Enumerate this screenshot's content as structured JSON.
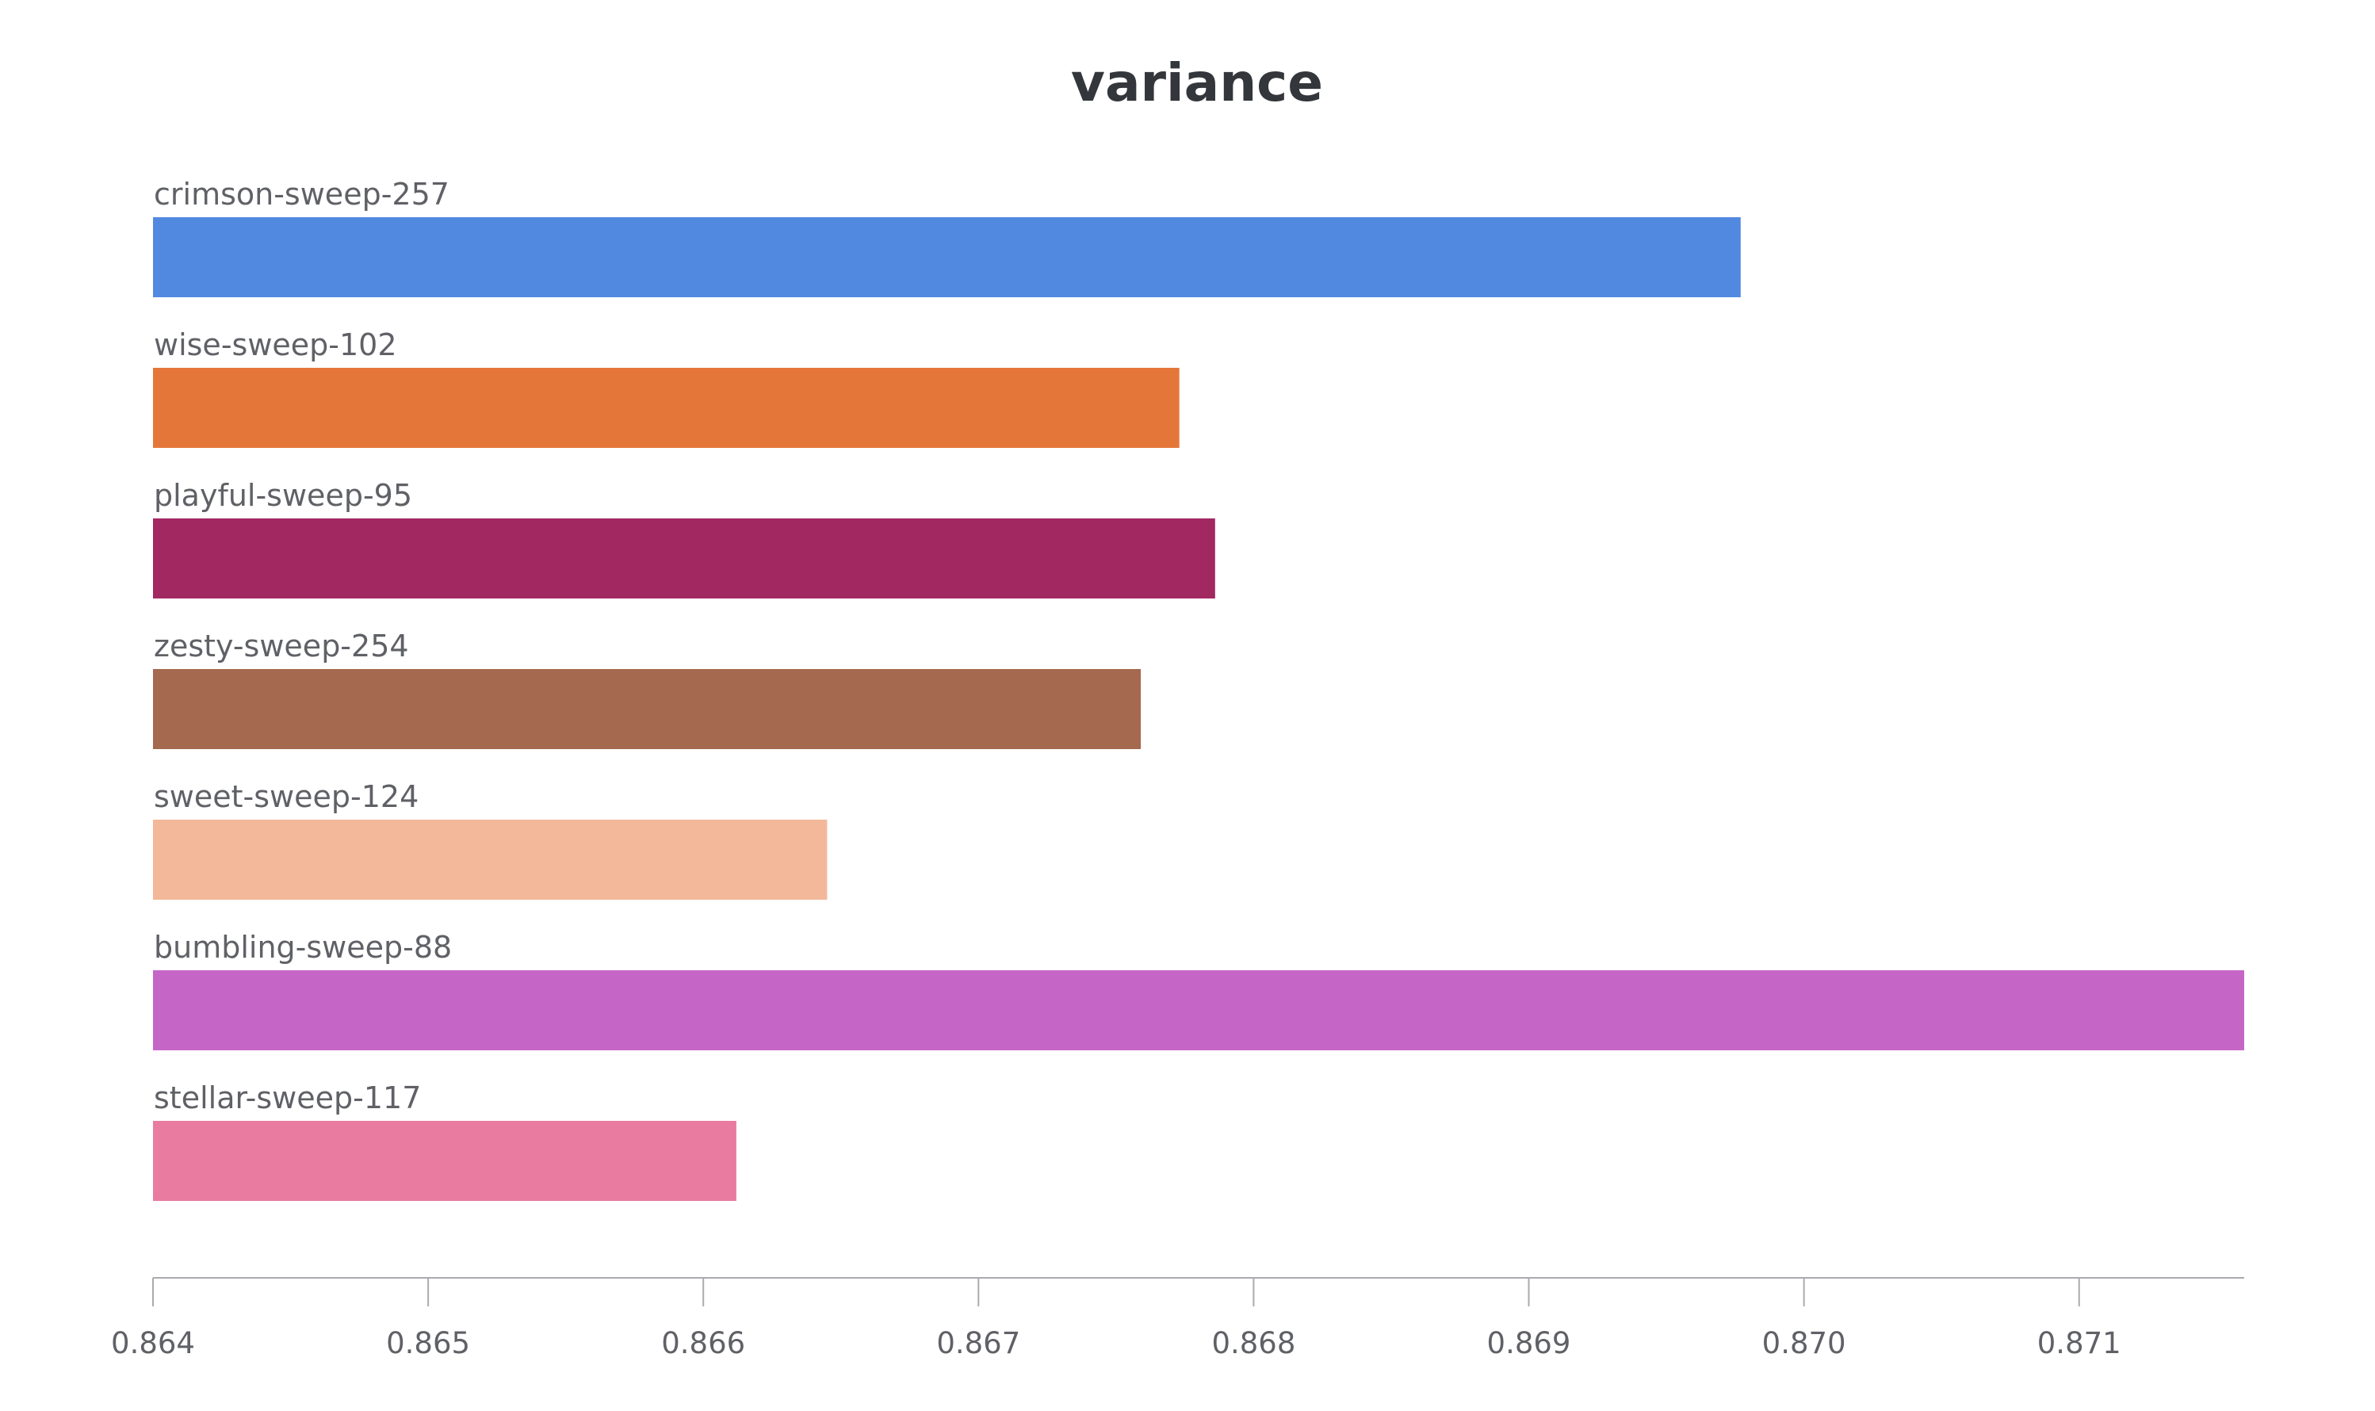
{
  "chart_data": {
    "type": "bar",
    "orientation": "horizontal",
    "title": "variance",
    "xlabel": "",
    "ylabel": "",
    "xlim": [
      0.864,
      0.8716
    ],
    "grid": false,
    "legend": "none",
    "x_ticks": [
      "0.864",
      "0.865",
      "0.866",
      "0.867",
      "0.868",
      "0.869",
      "0.870",
      "0.871"
    ],
    "categories": [
      "crimson-sweep-257",
      "wise-sweep-102",
      "playful-sweep-95",
      "zesty-sweep-254",
      "sweet-sweep-124",
      "bumbling-sweep-88",
      "stellar-sweep-117"
    ],
    "values": [
      0.86977,
      0.86773,
      0.86786,
      0.86759,
      0.86645,
      0.8716,
      0.86612
    ],
    "colors": [
      "#5289e0",
      "#e5763a",
      "#a22862",
      "#a5694f",
      "#f2b899",
      "#c566c7",
      "#e97ba0"
    ]
  }
}
